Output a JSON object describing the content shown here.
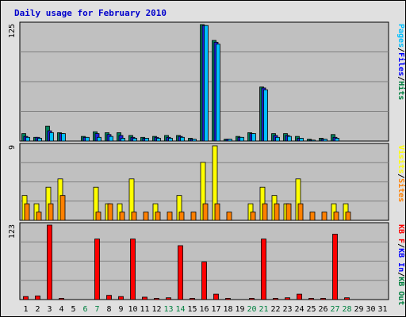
{
  "chart_data": {
    "type": "bar",
    "title": "Daily usage for February 2010",
    "days": [
      "1",
      "2",
      "3",
      "4",
      "5",
      "6",
      "7",
      "8",
      "9",
      "10",
      "11",
      "12",
      "13",
      "14",
      "15",
      "16",
      "17",
      "18",
      "19",
      "20",
      "21",
      "22",
      "23",
      "24",
      "25",
      "26",
      "27",
      "28",
      "29",
      "30",
      "31"
    ],
    "weekend_days": [
      "6",
      "7",
      "13",
      "14",
      "20",
      "21",
      "27",
      "28"
    ],
    "panels": [
      {
        "id": "requests",
        "axis_max_label": "125",
        "ymax": 125,
        "legend": [
          {
            "text": "Pages",
            "color": "#00c0ff"
          },
          {
            "text": "/",
            "color": "#000000"
          },
          {
            "text": "Files",
            "color": "#0000ff"
          },
          {
            "text": "/",
            "color": "#000000"
          },
          {
            "text": "Hits",
            "color": "#008040"
          }
        ],
        "series": [
          {
            "name": "Hits",
            "color": "#00805c",
            "values": [
              8,
              4,
              16,
              9,
              0,
              5,
              10,
              9,
              9,
              6,
              4,
              5,
              6,
              6,
              3,
              125,
              108,
              2,
              5,
              9,
              58,
              8,
              8,
              5,
              2,
              3,
              7,
              0,
              0,
              0,
              0
            ]
          },
          {
            "name": "Files",
            "color": "#2020e0",
            "values": [
              5,
              4,
              11,
              8,
              0,
              4,
              8,
              7,
              6,
              4,
              3,
              4,
              4,
              5,
              2,
              124,
              106,
              2,
              4,
              8,
              57,
              6,
              6,
              3,
              1,
              2,
              4,
              0,
              0,
              0,
              0
            ]
          },
          {
            "name": "Pages",
            "color": "#00bfff",
            "values": [
              4,
              3,
              9,
              8,
              0,
              4,
              4,
              5,
              3,
              3,
              3,
              3,
              3,
              4,
              2,
              124,
              104,
              2,
              4,
              8,
              55,
              4,
              5,
              3,
              1,
              2,
              3,
              0,
              0,
              0,
              0
            ]
          }
        ]
      },
      {
        "id": "visits",
        "axis_max_label": "9",
        "ymax": 9,
        "legend": [
          {
            "text": "Visits",
            "color": "#ffff00"
          },
          {
            "text": "/",
            "color": "#000000"
          },
          {
            "text": "Sites",
            "color": "#ff8000"
          }
        ],
        "series": [
          {
            "name": "Visits",
            "color": "#ffff00",
            "values": [
              3,
              2,
              4,
              5,
              0,
              0,
              4,
              2,
              2,
              5,
              0,
              2,
              0,
              3,
              0,
              7,
              9,
              0,
              0,
              2,
              4,
              3,
              2,
              5,
              0,
              0,
              2,
              2,
              0,
              0,
              0
            ]
          },
          {
            "name": "Sites",
            "color": "#ff8000",
            "values": [
              2,
              1,
              2,
              3,
              0,
              0,
              1,
              2,
              1,
              1,
              1,
              1,
              1,
              1,
              1,
              2,
              2,
              1,
              0,
              1,
              2,
              2,
              2,
              2,
              1,
              1,
              1,
              1,
              0,
              0,
              0
            ]
          }
        ]
      },
      {
        "id": "kbytes",
        "axis_max_label": "123",
        "ymax": 123,
        "legend": [
          {
            "text": "KB F",
            "color": "#ff0000"
          },
          {
            "text": "/",
            "color": "#000000"
          },
          {
            "text": "KB In",
            "color": "#0000ff"
          },
          {
            "text": "/",
            "color": "#000000"
          },
          {
            "text": "KB Out",
            "color": "#008040"
          }
        ],
        "series": [
          {
            "name": "KB F",
            "color": "#ff0000",
            "values": [
              5,
              6,
              123,
              2,
              0,
              0,
              100,
              7,
              5,
              100,
              4,
              2,
              3,
              89,
              2,
              62,
              9,
              2,
              0,
              2,
              100,
              2,
              3,
              9,
              2,
              2,
              108,
              3,
              0,
              0,
              0
            ]
          }
        ]
      }
    ]
  }
}
